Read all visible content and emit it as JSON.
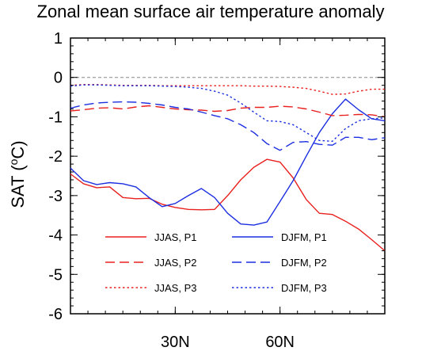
{
  "chart_data": {
    "type": "line",
    "title": "Zonal mean surface air temperature anomaly",
    "xlabel": "",
    "ylabel_main": "SAT (",
    "ylabel_sup": "o",
    "ylabel_end": "C)",
    "xlim": [
      0,
      90
    ],
    "ylim": [
      -6,
      1
    ],
    "xticks": [
      {
        "value": 30,
        "label": "30N"
      },
      {
        "value": 60,
        "label": "60N"
      }
    ],
    "yticks": [
      {
        "value": 1,
        "label": "1"
      },
      {
        "value": 0,
        "label": "0"
      },
      {
        "value": -1,
        "label": "-1"
      },
      {
        "value": -2,
        "label": "-2"
      },
      {
        "value": -3,
        "label": "-3"
      },
      {
        "value": -4,
        "label": "-4"
      },
      {
        "value": -5,
        "label": "-5"
      },
      {
        "value": -6,
        "label": "-6"
      }
    ],
    "x_minor_step": 5,
    "y_minor_step": 0.2,
    "zero_line": true,
    "grid": false,
    "legend_position": "lower-center",
    "series": [
      {
        "name": "JJAS, P1",
        "color": "#e8211f",
        "dash": "solid",
        "x": [
          0,
          3.75,
          7.5,
          11.25,
          15,
          18.75,
          22.5,
          26.25,
          30,
          33.75,
          37.5,
          41.25,
          45,
          48.75,
          52.5,
          56.25,
          60,
          63.75,
          67.5,
          71.25,
          75,
          78.75,
          82.5,
          86.25,
          90
        ],
        "y": [
          -2.45,
          -2.7,
          -2.8,
          -2.78,
          -3.05,
          -3.08,
          -3.07,
          -3.22,
          -3.3,
          -3.35,
          -3.36,
          -3.35,
          -3.0,
          -2.6,
          -2.28,
          -2.08,
          -2.15,
          -2.55,
          -3.1,
          -3.45,
          -3.48,
          -3.65,
          -3.85,
          -4.12,
          -4.4
        ]
      },
      {
        "name": "DJFM, P1",
        "color": "#1c2fe0",
        "dash": "solid",
        "x": [
          0,
          3.75,
          7.5,
          11.25,
          15,
          18.75,
          22.5,
          26.25,
          30,
          33.75,
          37.5,
          41.25,
          45,
          48.75,
          52.5,
          56.25,
          60,
          63.75,
          67.5,
          71.25,
          75,
          78.75,
          82.5,
          86.25,
          90
        ],
        "y": [
          -2.3,
          -2.62,
          -2.72,
          -2.67,
          -2.7,
          -2.78,
          -3.05,
          -3.28,
          -3.2,
          -3.0,
          -2.82,
          -3.05,
          -3.45,
          -3.72,
          -3.75,
          -3.67,
          -3.15,
          -2.62,
          -2.0,
          -1.4,
          -0.92,
          -0.55,
          -0.82,
          -1.05,
          -1.1
        ]
      },
      {
        "name": "JJAS, P2",
        "color": "#e8211f",
        "dash": "long",
        "x": [
          0,
          3.75,
          7.5,
          11.25,
          15,
          18.75,
          22.5,
          26.25,
          30,
          33.75,
          37.5,
          41.25,
          45,
          48.75,
          52.5,
          56.25,
          60,
          63.75,
          67.5,
          71.25,
          75,
          78.75,
          82.5,
          86.25,
          90
        ],
        "y": [
          -0.85,
          -0.82,
          -0.78,
          -0.77,
          -0.8,
          -0.75,
          -0.72,
          -0.76,
          -0.8,
          -0.82,
          -0.83,
          -0.86,
          -0.84,
          -0.78,
          -0.76,
          -0.76,
          -0.73,
          -0.75,
          -0.8,
          -0.88,
          -0.97,
          -0.96,
          -0.94,
          -0.95,
          -1.0
        ]
      },
      {
        "name": "DJFM, P2",
        "color": "#1c2fe0",
        "dash": "long",
        "x": [
          0,
          3.75,
          7.5,
          11.25,
          15,
          18.75,
          22.5,
          26.25,
          30,
          33.75,
          37.5,
          41.25,
          45,
          48.75,
          52.5,
          56.25,
          60,
          63.75,
          67.5,
          71.25,
          75,
          78.75,
          82.5,
          86.25,
          90
        ],
        "y": [
          -0.78,
          -0.7,
          -0.65,
          -0.63,
          -0.62,
          -0.63,
          -0.66,
          -0.7,
          -0.76,
          -0.8,
          -0.88,
          -0.97,
          -1.05,
          -1.2,
          -1.4,
          -1.68,
          -1.85,
          -1.65,
          -1.63,
          -1.7,
          -1.72,
          -1.52,
          -1.52,
          -1.58,
          -1.53
        ]
      },
      {
        "name": "JJAS, P3",
        "color": "#e8211f",
        "dash": "dot",
        "x": [
          0,
          3.75,
          7.5,
          11.25,
          15,
          18.75,
          22.5,
          26.25,
          30,
          33.75,
          37.5,
          41.25,
          45,
          48.75,
          52.5,
          56.25,
          60,
          63.75,
          67.5,
          71.25,
          75,
          78.75,
          82.5,
          86.25,
          90
        ],
        "y": [
          -0.2,
          -0.18,
          -0.18,
          -0.19,
          -0.2,
          -0.2,
          -0.2,
          -0.21,
          -0.21,
          -0.21,
          -0.21,
          -0.21,
          -0.21,
          -0.21,
          -0.22,
          -0.22,
          -0.23,
          -0.25,
          -0.28,
          -0.35,
          -0.43,
          -0.42,
          -0.35,
          -0.3,
          -0.3
        ]
      },
      {
        "name": "DJFM, P3",
        "color": "#1c2fe0",
        "dash": "dot",
        "x": [
          0,
          3.75,
          7.5,
          11.25,
          15,
          18.75,
          22.5,
          26.25,
          30,
          33.75,
          37.5,
          41.25,
          45,
          48.75,
          52.5,
          56.25,
          60,
          63.75,
          67.5,
          71.25,
          75,
          78.75,
          82.5,
          86.25,
          90
        ],
        "y": [
          -0.22,
          -0.19,
          -0.19,
          -0.2,
          -0.21,
          -0.21,
          -0.21,
          -0.22,
          -0.23,
          -0.25,
          -0.28,
          -0.35,
          -0.45,
          -0.65,
          -0.88,
          -1.1,
          -1.12,
          -1.2,
          -1.4,
          -1.6,
          -1.62,
          -1.3,
          -1.1,
          -1.05,
          -1.03
        ]
      }
    ]
  }
}
